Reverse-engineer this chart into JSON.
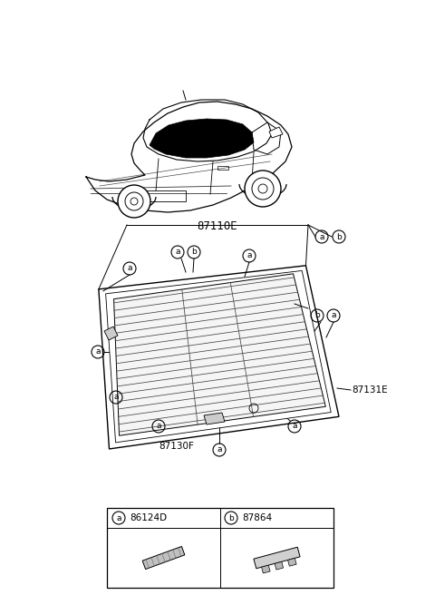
{
  "background_color": "#ffffff",
  "part_labels": {
    "a": "86124D",
    "b": "87864"
  },
  "label_87110E": "87110E",
  "label_87130F": "87130F",
  "label_87131E": "87131E",
  "fig_width": 4.8,
  "fig_height": 6.56,
  "dpi": 100,
  "car_color": "#000000",
  "line_color": "#000000",
  "glass_line_color": "#555555"
}
